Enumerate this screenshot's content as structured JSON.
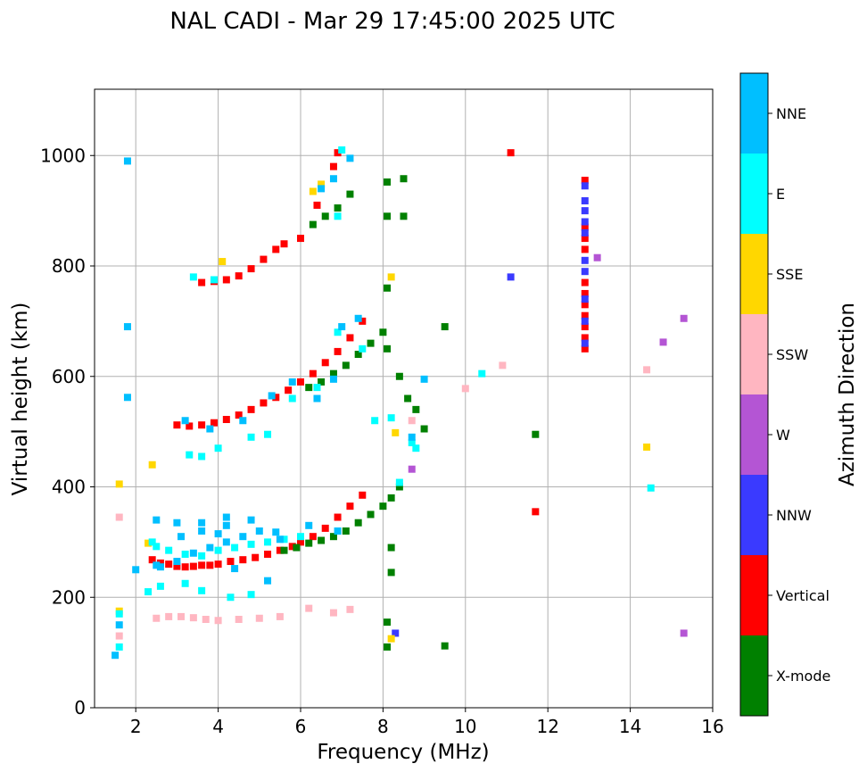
{
  "chart_data": {
    "type": "scatter",
    "title": "NAL CADI - Mar 29 17:45:00 2025 UTC",
    "xlabel": "Frequency (MHz)",
    "ylabel": "Virtual height (km)",
    "xlim": [
      1,
      16
    ],
    "ylim": [
      0,
      1120
    ],
    "xticks": [
      2,
      4,
      6,
      8,
      10,
      12,
      14,
      16
    ],
    "yticks": [
      0,
      200,
      400,
      600,
      800,
      1000
    ],
    "grid": true,
    "colorbar": {
      "label": "Azimuth Direction",
      "categories": [
        {
          "name": "X-mode",
          "color": "#008000"
        },
        {
          "name": "Vertical",
          "color": "#ff0000"
        },
        {
          "name": "NNW",
          "color": "#3a3aff"
        },
        {
          "name": "W",
          "color": "#b455d4"
        },
        {
          "name": "SSW",
          "color": "#ffb6c1"
        },
        {
          "name": "SSE",
          "color": "#ffd700"
        },
        {
          "name": "E",
          "color": "#00ffff"
        },
        {
          "name": "NNE",
          "color": "#00bfff"
        }
      ]
    },
    "series": [
      {
        "name": "Vertical",
        "points": [
          [
            2.4,
            268
          ],
          [
            2.6,
            262
          ],
          [
            2.8,
            260
          ],
          [
            3.0,
            256
          ],
          [
            3.2,
            255
          ],
          [
            3.4,
            256
          ],
          [
            3.6,
            258
          ],
          [
            3.8,
            258
          ],
          [
            4.0,
            260
          ],
          [
            4.3,
            265
          ],
          [
            4.6,
            268
          ],
          [
            4.9,
            272
          ],
          [
            5.2,
            278
          ],
          [
            5.5,
            285
          ],
          [
            5.8,
            292
          ],
          [
            6.0,
            300
          ],
          [
            6.3,
            310
          ],
          [
            6.6,
            325
          ],
          [
            6.9,
            345
          ],
          [
            7.2,
            365
          ],
          [
            7.5,
            385
          ],
          [
            3.0,
            512
          ],
          [
            3.3,
            510
          ],
          [
            3.6,
            512
          ],
          [
            3.9,
            516
          ],
          [
            4.2,
            522
          ],
          [
            4.5,
            530
          ],
          [
            4.8,
            540
          ],
          [
            5.1,
            552
          ],
          [
            5.4,
            562
          ],
          [
            5.7,
            575
          ],
          [
            6.0,
            590
          ],
          [
            6.3,
            605
          ],
          [
            6.6,
            625
          ],
          [
            6.9,
            645
          ],
          [
            7.2,
            670
          ],
          [
            7.5,
            700
          ],
          [
            3.6,
            770
          ],
          [
            3.9,
            772
          ],
          [
            4.2,
            775
          ],
          [
            4.5,
            782
          ],
          [
            4.8,
            795
          ],
          [
            5.1,
            812
          ],
          [
            5.4,
            830
          ],
          [
            5.6,
            840
          ],
          [
            6.0,
            850
          ],
          [
            6.4,
            910
          ],
          [
            6.8,
            980
          ],
          [
            6.9,
            1005
          ],
          [
            11.1,
            1005
          ],
          [
            11.7,
            355
          ],
          [
            12.9,
            650
          ],
          [
            12.9,
            670
          ],
          [
            12.9,
            690
          ],
          [
            12.9,
            710
          ],
          [
            12.9,
            730
          ],
          [
            12.9,
            750
          ],
          [
            12.9,
            770
          ],
          [
            12.9,
            830
          ],
          [
            12.9,
            850
          ],
          [
            12.9,
            870
          ],
          [
            12.9,
            955
          ]
        ]
      },
      {
        "name": "X-mode",
        "points": [
          [
            5.6,
            285
          ],
          [
            5.9,
            290
          ],
          [
            6.2,
            298
          ],
          [
            6.5,
            303
          ],
          [
            6.8,
            310
          ],
          [
            7.1,
            320
          ],
          [
            7.4,
            335
          ],
          [
            7.7,
            350
          ],
          [
            8.0,
            365
          ],
          [
            8.2,
            380
          ],
          [
            8.4,
            400
          ],
          [
            6.2,
            580
          ],
          [
            6.5,
            590
          ],
          [
            6.8,
            605
          ],
          [
            7.1,
            620
          ],
          [
            7.4,
            640
          ],
          [
            7.7,
            660
          ],
          [
            8.0,
            680
          ],
          [
            6.3,
            875
          ],
          [
            6.6,
            890
          ],
          [
            6.9,
            905
          ],
          [
            7.2,
            930
          ],
          [
            8.1,
            952
          ],
          [
            8.5,
            958
          ],
          [
            8.1,
            890
          ],
          [
            8.5,
            890
          ],
          [
            8.1,
            760
          ],
          [
            8.1,
            650
          ],
          [
            8.4,
            600
          ],
          [
            8.6,
            560
          ],
          [
            8.8,
            540
          ],
          [
            9.0,
            505
          ],
          [
            8.2,
            290
          ],
          [
            8.2,
            245
          ],
          [
            8.1,
            155
          ],
          [
            8.1,
            110
          ],
          [
            9.5,
            690
          ],
          [
            9.5,
            112
          ],
          [
            11.7,
            495
          ]
        ]
      },
      {
        "name": "NNW",
        "points": [
          [
            12.9,
            660
          ],
          [
            12.9,
            700
          ],
          [
            12.9,
            740
          ],
          [
            12.9,
            790
          ],
          [
            12.9,
            810
          ],
          [
            12.9,
            860
          ],
          [
            12.9,
            880
          ],
          [
            12.9,
            900
          ],
          [
            12.9,
            918
          ],
          [
            12.9,
            945
          ],
          [
            11.1,
            780
          ],
          [
            8.3,
            135
          ]
        ]
      },
      {
        "name": "W",
        "points": [
          [
            13.2,
            815
          ],
          [
            14.8,
            662
          ],
          [
            15.3,
            135
          ],
          [
            15.3,
            705
          ],
          [
            8.7,
            432
          ]
        ]
      },
      {
        "name": "SSW",
        "points": [
          [
            2.5,
            162
          ],
          [
            2.8,
            165
          ],
          [
            3.1,
            165
          ],
          [
            3.4,
            163
          ],
          [
            3.7,
            160
          ],
          [
            4.0,
            158
          ],
          [
            4.5,
            160
          ],
          [
            5.0,
            162
          ],
          [
            5.5,
            165
          ],
          [
            6.2,
            180
          ],
          [
            6.8,
            172
          ],
          [
            7.2,
            178
          ],
          [
            8.7,
            520
          ],
          [
            10.0,
            578
          ],
          [
            10.9,
            620
          ],
          [
            14.4,
            612
          ],
          [
            1.6,
            130
          ],
          [
            1.6,
            345
          ]
        ]
      },
      {
        "name": "SSE",
        "points": [
          [
            2.3,
            298
          ],
          [
            2.4,
            440
          ],
          [
            1.6,
            405
          ],
          [
            6.5,
            948
          ],
          [
            6.3,
            935
          ],
          [
            8.3,
            498
          ],
          [
            14.4,
            472
          ],
          [
            8.2,
            780
          ],
          [
            8.2,
            125
          ],
          [
            4.1,
            808
          ],
          [
            1.6,
            175
          ]
        ]
      },
      {
        "name": "E",
        "points": [
          [
            2.4,
            300
          ],
          [
            2.5,
            292
          ],
          [
            2.8,
            285
          ],
          [
            3.2,
            278
          ],
          [
            3.6,
            275
          ],
          [
            4.0,
            285
          ],
          [
            4.4,
            290
          ],
          [
            4.8,
            296
          ],
          [
            5.2,
            300
          ],
          [
            5.6,
            305
          ],
          [
            6.0,
            310
          ],
          [
            2.3,
            210
          ],
          [
            2.6,
            220
          ],
          [
            3.2,
            225
          ],
          [
            3.6,
            212
          ],
          [
            4.3,
            200
          ],
          [
            4.8,
            205
          ],
          [
            3.3,
            458
          ],
          [
            3.6,
            455
          ],
          [
            4.0,
            470
          ],
          [
            4.8,
            490
          ],
          [
            5.2,
            495
          ],
          [
            5.8,
            560
          ],
          [
            6.4,
            580
          ],
          [
            6.9,
            680
          ],
          [
            7.5,
            650
          ],
          [
            7.8,
            520
          ],
          [
            8.2,
            525
          ],
          [
            8.4,
            408
          ],
          [
            8.7,
            480
          ],
          [
            8.8,
            470
          ],
          [
            3.4,
            780
          ],
          [
            3.9,
            775
          ],
          [
            6.9,
            890
          ],
          [
            7.0,
            1010
          ],
          [
            10.4,
            605
          ],
          [
            14.5,
            398
          ],
          [
            1.6,
            110
          ],
          [
            1.6,
            170
          ]
        ]
      },
      {
        "name": "NNE",
        "points": [
          [
            2.6,
            255
          ],
          [
            3.0,
            265
          ],
          [
            3.4,
            280
          ],
          [
            3.8,
            290
          ],
          [
            4.2,
            300
          ],
          [
            4.6,
            310
          ],
          [
            5.0,
            320
          ],
          [
            5.4,
            318
          ],
          [
            2.5,
            340
          ],
          [
            3.0,
            335
          ],
          [
            3.6,
            335
          ],
          [
            4.2,
            345
          ],
          [
            4.8,
            340
          ],
          [
            5.5,
            305
          ],
          [
            6.2,
            330
          ],
          [
            6.9,
            320
          ],
          [
            3.1,
            310
          ],
          [
            3.6,
            320
          ],
          [
            4.0,
            315
          ],
          [
            4.2,
            330
          ],
          [
            2.5,
            258
          ],
          [
            4.4,
            252
          ],
          [
            5.2,
            230
          ],
          [
            3.2,
            520
          ],
          [
            3.8,
            505
          ],
          [
            4.6,
            520
          ],
          [
            5.3,
            565
          ],
          [
            5.8,
            590
          ],
          [
            6.4,
            560
          ],
          [
            6.8,
            595
          ],
          [
            7.0,
            690
          ],
          [
            7.4,
            705
          ],
          [
            6.5,
            940
          ],
          [
            6.8,
            958
          ],
          [
            7.2,
            995
          ],
          [
            1.8,
            990
          ],
          [
            1.8,
            690
          ],
          [
            1.8,
            562
          ],
          [
            1.6,
            150
          ],
          [
            1.5,
            95
          ],
          [
            2.0,
            250
          ],
          [
            9.0,
            595
          ],
          [
            8.7,
            490
          ]
        ]
      }
    ]
  }
}
